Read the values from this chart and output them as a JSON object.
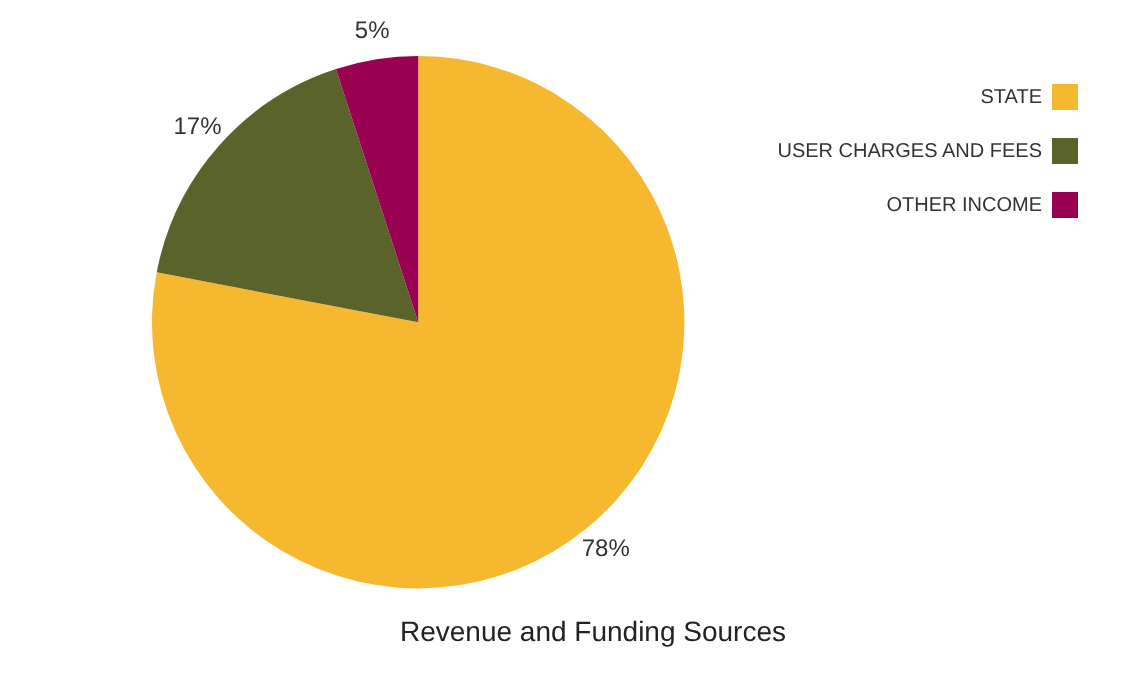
{
  "chart_data": {
    "type": "pie",
    "title": "Revenue and Funding Sources",
    "categories": [
      "STATE",
      "USER CHARGES AND FEES",
      "OTHER INCOME"
    ],
    "values": [
      78,
      17,
      5
    ],
    "colors": [
      "#f6b82e",
      "#5a6329",
      "#9a0052"
    ],
    "value_labels": [
      "78%",
      "17%",
      "5%"
    ],
    "legend": "top right"
  }
}
